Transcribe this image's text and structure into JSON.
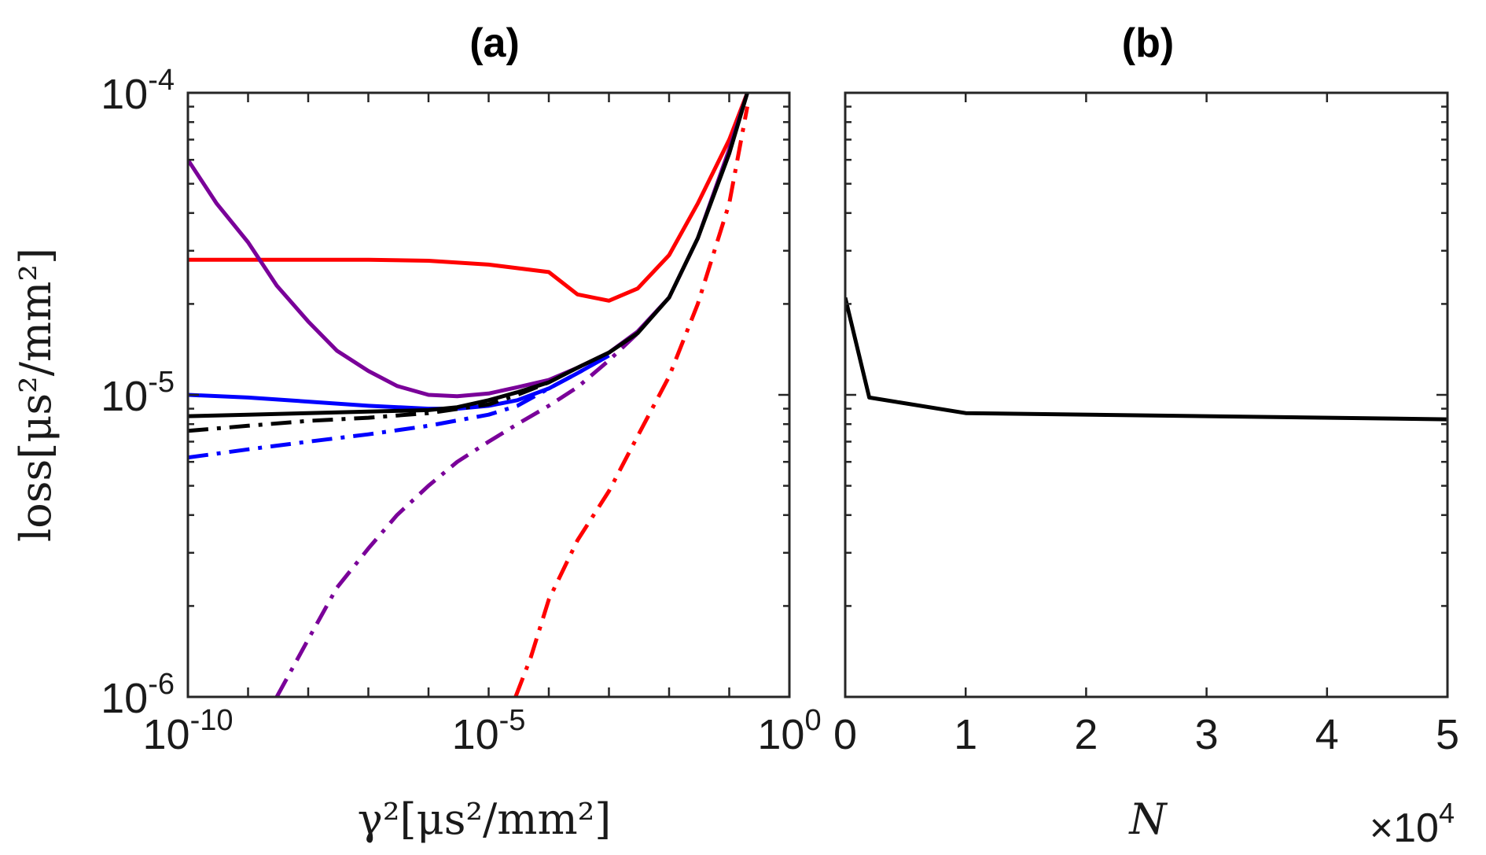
{
  "chart_data": [
    {
      "type": "line",
      "title": "(a)",
      "xlabel": "γ²[μs²/mm²]",
      "ylabel": "loss[μs²/mm²]",
      "xscale": "log",
      "yscale": "log",
      "xlim": [
        1e-10,
        1
      ],
      "ylim": [
        1e-06,
        0.0001
      ],
      "xticks": [
        {
          "value": 1e-10,
          "base": "10",
          "exp": "-10"
        },
        {
          "value": 1e-05,
          "base": "10",
          "exp": "-5"
        },
        {
          "value": 1,
          "base": "10",
          "exp": "0"
        }
      ],
      "yticks": [
        {
          "value": 1e-06,
          "base": "10",
          "exp": "-6"
        },
        {
          "value": 1e-05,
          "base": "10",
          "exp": "-5"
        },
        {
          "value": 0.0001,
          "base": "10",
          "exp": "-4"
        }
      ],
      "grid": false,
      "series": [
        {
          "color": "#ff0000",
          "style": "solid",
          "x": [
            1e-10,
            1e-09,
            1e-08,
            1e-07,
            1e-06,
            1e-05,
            0.0001,
            0.0003,
            0.001,
            0.003,
            0.01,
            0.03,
            0.1,
            0.2
          ],
          "y": [
            2.8e-05,
            2.8e-05,
            2.8e-05,
            2.8e-05,
            2.78e-05,
            2.7e-05,
            2.55e-05,
            2.15e-05,
            2.05e-05,
            2.25e-05,
            2.9e-05,
            4.3e-05,
            7e-05,
            0.0001
          ]
        },
        {
          "color": "#ff0000",
          "style": "dashdot",
          "x": [
            2.8e-05,
            5e-05,
            0.0001,
            0.0003,
            0.001,
            0.003,
            0.01,
            0.03,
            0.1,
            0.2
          ],
          "y": [
            1e-06,
            1.35e-06,
            2.1e-06,
            3.3e-06,
            4.8e-06,
            7.3e-06,
            1.15e-05,
            2e-05,
            4.3e-05,
            9e-05
          ]
        },
        {
          "color": "#7a0099",
          "style": "solid",
          "x": [
            1e-10,
            3e-10,
            1e-09,
            3e-09,
            1e-08,
            3e-08,
            1e-07,
            3e-07,
            1e-06,
            3e-06,
            1e-05,
            3e-05,
            0.0001,
            0.0003,
            0.001,
            0.003,
            0.01,
            0.03,
            0.1,
            0.2
          ],
          "y": [
            6e-05,
            4.3e-05,
            3.2e-05,
            2.3e-05,
            1.75e-05,
            1.4e-05,
            1.2e-05,
            1.07e-05,
            1e-05,
            9.9e-06,
            1.01e-05,
            1.06e-05,
            1.12e-05,
            1.23e-05,
            1.38e-05,
            1.62e-05,
            2.1e-05,
            3.3e-05,
            6.5e-05,
            0.0001
          ]
        },
        {
          "color": "#7a0099",
          "style": "dashdot",
          "x": [
            3e-09,
            1e-08,
            3e-08,
            1e-07,
            3e-07,
            1e-06,
            3e-06,
            1e-05,
            3e-05,
            0.0001,
            0.0003,
            0.001,
            0.003
          ],
          "y": [
            1e-06,
            1.55e-06,
            2.3e-06,
            3.1e-06,
            4e-06,
            5e-06,
            6e-06,
            7e-06,
            8e-06,
            9.2e-06,
            1.06e-05,
            1.3e-05,
            1.6e-05
          ]
        },
        {
          "color": "#0000ff",
          "style": "solid",
          "x": [
            1e-10,
            1e-09,
            1e-08,
            1e-07,
            1e-06,
            3e-06,
            1e-05,
            3e-05,
            0.0001,
            0.0003,
            0.001
          ],
          "y": [
            1e-05,
            9.8e-06,
            9.5e-06,
            9.2e-06,
            9e-06,
            9e-06,
            9.2e-06,
            9.6e-06,
            1.05e-05,
            1.18e-05,
            1.35e-05
          ]
        },
        {
          "color": "#0000ff",
          "style": "dashdot",
          "x": [
            1e-10,
            1e-09,
            1e-08,
            1e-07,
            1e-06,
            1e-05,
            3e-05,
            0.0001,
            0.0003,
            0.001
          ],
          "y": [
            6.2e-06,
            6.6e-06,
            7e-06,
            7.4e-06,
            7.9e-06,
            8.6e-06,
            9.2e-06,
            1.05e-05,
            1.18e-05,
            1.35e-05
          ]
        },
        {
          "color": "#000000",
          "style": "solid",
          "x": [
            1e-10,
            1e-09,
            1e-08,
            1e-07,
            1e-06,
            3e-06,
            1e-05,
            3e-05,
            0.0001,
            0.0003,
            0.001,
            0.003,
            0.01,
            0.03,
            0.1,
            0.2
          ],
          "y": [
            8.5e-06,
            8.6e-06,
            8.7e-06,
            8.8e-06,
            8.9e-06,
            9.1e-06,
            9.6e-06,
            1.02e-05,
            1.1e-05,
            1.23e-05,
            1.38e-05,
            1.6e-05,
            2.1e-05,
            3.3e-05,
            6.3e-05,
            0.0001
          ]
        },
        {
          "color": "#000000",
          "style": "dashdot",
          "x": [
            1e-10,
            1e-09,
            1e-08,
            1e-07,
            1e-06,
            1e-05,
            3e-05,
            0.0001
          ],
          "y": [
            7.6e-06,
            7.9e-06,
            8.2e-06,
            8.4e-06,
            8.7e-06,
            9.3e-06,
            1e-05,
            1.1e-05
          ]
        }
      ]
    },
    {
      "type": "line",
      "title": "(b)",
      "xlabel": "N",
      "xscale": "linear",
      "yscale": "log",
      "xlim": [
        0,
        50000
      ],
      "ylim": [
        1e-06,
        0.0001
      ],
      "xticks": [
        0,
        1,
        2,
        3,
        4,
        5
      ],
      "x_multiplier": {
        "prefix": "×",
        "base": "10",
        "exp": "4"
      },
      "grid": false,
      "series": [
        {
          "color": "#000000",
          "style": "solid",
          "x": [
            0,
            2000,
            10000,
            50000
          ],
          "y": [
            2.1e-05,
            9.8e-06,
            8.7e-06,
            8.3e-06
          ]
        }
      ]
    }
  ]
}
